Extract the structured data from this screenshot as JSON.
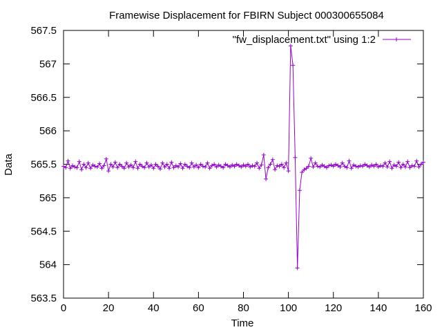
{
  "chart_data": {
    "type": "line",
    "title": "Framewise Displacement for FBIRN Subject 000300655084",
    "xlabel": "Time",
    "ylabel": "Data",
    "xlim": [
      0,
      160
    ],
    "ylim": [
      563.5,
      567.5
    ],
    "x_ticks": [
      "0",
      "20",
      "40",
      "60",
      "80",
      "100",
      "120",
      "140",
      "160"
    ],
    "y_ticks": [
      "563.5",
      "564",
      "564.5",
      "565",
      "565.5",
      "566",
      "566.5",
      "567",
      "567.5"
    ],
    "grid": false,
    "legend_position": "top-right",
    "series_color": "#9400d3",
    "series": [
      {
        "name": "\"fw_displacement.txt\" using 1:2",
        "x": [
          0,
          1,
          2,
          3,
          4,
          5,
          6,
          7,
          8,
          9,
          10,
          11,
          12,
          13,
          14,
          15,
          16,
          17,
          18,
          19,
          20,
          21,
          22,
          23,
          24,
          25,
          26,
          27,
          28,
          29,
          30,
          31,
          32,
          33,
          34,
          35,
          36,
          37,
          38,
          39,
          40,
          41,
          42,
          43,
          44,
          45,
          46,
          47,
          48,
          49,
          50,
          51,
          52,
          53,
          54,
          55,
          56,
          57,
          58,
          59,
          60,
          61,
          62,
          63,
          64,
          65,
          66,
          67,
          68,
          69,
          70,
          71,
          72,
          73,
          74,
          75,
          76,
          77,
          78,
          79,
          80,
          81,
          82,
          83,
          84,
          85,
          86,
          87,
          88,
          89,
          90,
          91,
          92,
          93,
          94,
          95,
          96,
          97,
          98,
          99,
          100,
          101,
          102,
          103,
          104,
          105,
          106,
          107,
          108,
          109,
          110,
          111,
          112,
          113,
          114,
          115,
          116,
          117,
          118,
          119,
          120,
          121,
          122,
          123,
          124,
          125,
          126,
          127,
          128,
          129,
          130,
          131,
          132,
          133,
          134,
          135,
          136,
          137,
          138,
          139,
          140,
          141,
          142,
          143,
          144,
          145,
          146,
          147,
          148,
          149,
          150,
          151,
          152,
          153,
          154,
          155,
          156,
          157,
          158,
          159,
          160
        ],
        "y": [
          565.47,
          565.45,
          565.55,
          565.44,
          565.48,
          565.46,
          565.45,
          565.54,
          565.42,
          565.5,
          565.45,
          565.52,
          565.44,
          565.49,
          565.47,
          565.46,
          565.51,
          565.44,
          565.48,
          565.58,
          565.4,
          565.5,
          565.46,
          565.53,
          565.45,
          565.5,
          565.47,
          565.44,
          565.52,
          565.46,
          565.49,
          565.45,
          565.54,
          565.44,
          565.5,
          565.47,
          565.45,
          565.52,
          565.46,
          565.49,
          565.44,
          565.5,
          565.47,
          565.43,
          565.52,
          565.46,
          565.5,
          565.44,
          565.53,
          565.45,
          565.48,
          565.46,
          565.51,
          565.44,
          565.5,
          565.47,
          565.45,
          565.52,
          565.46,
          565.49,
          565.45,
          565.5,
          565.47,
          565.46,
          565.52,
          565.44,
          565.48,
          565.5,
          565.46,
          565.49,
          565.47,
          565.45,
          565.5,
          565.48,
          565.46,
          565.49,
          565.47,
          565.5,
          565.48,
          565.46,
          565.49,
          565.47,
          565.5,
          565.46,
          565.48,
          565.47,
          565.52,
          565.44,
          565.49,
          565.64,
          565.28,
          565.45,
          565.5,
          565.57,
          565.42,
          565.48,
          565.47,
          565.5,
          565.45,
          565.52,
          565.4,
          567.27,
          566.98,
          565.6,
          563.95,
          565.11,
          565.38,
          565.42,
          565.44,
          565.47,
          565.59,
          565.46,
          565.52,
          565.47,
          565.46,
          565.49,
          565.47,
          565.45,
          565.48,
          565.49,
          565.47,
          565.5,
          565.48,
          565.46,
          565.52,
          565.47,
          565.45,
          565.55,
          565.44,
          565.49,
          565.47,
          565.46,
          565.48,
          565.47,
          565.5,
          565.48,
          565.46,
          565.49,
          565.47,
          565.5,
          565.46,
          565.48,
          565.47,
          565.52,
          565.46,
          565.54,
          565.44,
          565.49,
          565.47,
          565.53,
          565.45,
          565.5,
          565.46,
          565.54,
          565.45,
          565.48,
          565.47,
          565.55,
          565.46,
          565.5,
          565.53
        ]
      }
    ]
  }
}
